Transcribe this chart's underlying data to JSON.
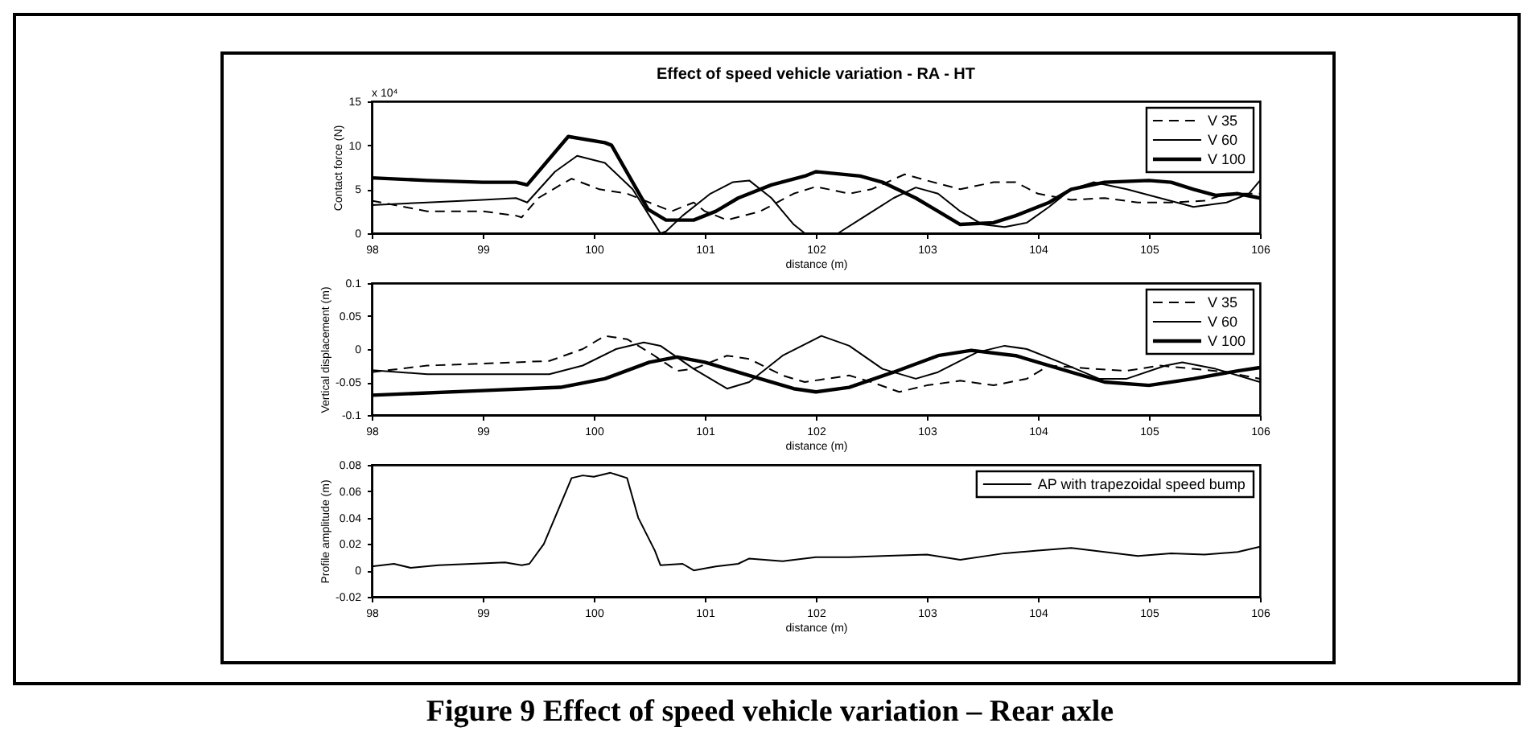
{
  "chart_data": [
    {
      "type": "line",
      "title": "Effect of speed vehicle variation - RA - HT",
      "xlabel": "distance (m)",
      "ylabel": "Contact force (N)",
      "annotations": [
        "x 10⁴"
      ],
      "xlim": [
        98,
        106
      ],
      "xticks": [
        98,
        99,
        100,
        101,
        102,
        103,
        104,
        105,
        106
      ],
      "ylim": [
        0,
        15
      ],
      "yticks": [
        0,
        5,
        10,
        15
      ],
      "legend": "top right",
      "series": [
        {
          "name": "V 35",
          "color": "#000000",
          "line_style": "dashed",
          "x": [
            98,
            98.5,
            99,
            99.3,
            99.35,
            99.5,
            99.7,
            99.8,
            100.05,
            100.3,
            100.5,
            100.7,
            100.9,
            101,
            101.2,
            101.5,
            101.8,
            102,
            102.3,
            102.5,
            102.8,
            103,
            103.3,
            103.6,
            103.8,
            104,
            104.3,
            104.6,
            104.9,
            105.2,
            105.5,
            105.7,
            106
          ],
          "values": [
            3.7,
            2.5,
            2.5,
            2,
            1.8,
            4,
            5.5,
            6.2,
            5,
            4.5,
            3.5,
            2.5,
            3.5,
            2.5,
            1.5,
            2.5,
            4.5,
            5.3,
            4.5,
            5,
            6.7,
            6,
            5,
            5.8,
            5.8,
            4.5,
            3.8,
            4,
            3.5,
            3.5,
            3.7,
            4.5,
            4.5
          ]
        },
        {
          "name": "V 60",
          "color": "#000000",
          "line_style": "solid",
          "x": [
            98,
            98.5,
            99,
            99.3,
            99.4,
            99.65,
            99.85,
            100.1,
            100.35,
            100.5,
            100.6,
            100.65,
            100.8,
            101.05,
            101.25,
            101.4,
            101.6,
            101.8,
            101.9,
            102.2,
            102.45,
            102.7,
            102.9,
            103.1,
            103.3,
            103.5,
            103.7,
            103.9,
            104.1,
            104.3,
            104.5,
            104.8,
            105.1,
            105.4,
            105.7,
            105.9,
            106
          ],
          "values": [
            3.2,
            3.5,
            3.8,
            4,
            3.5,
            7,
            8.8,
            8,
            5,
            2,
            0,
            0.2,
            2,
            4.5,
            5.8,
            6,
            4,
            1,
            0,
            0,
            2,
            4,
            5.2,
            4.5,
            2.5,
            1,
            0.7,
            1.2,
            3,
            5,
            5.8,
            5,
            4,
            3,
            3.5,
            4.5,
            6
          ]
        },
        {
          "name": "V 100",
          "color": "#000000",
          "line_style": "solid",
          "x": [
            98,
            98.5,
            99,
            99.3,
            99.4,
            99.77,
            100.1,
            100.16,
            100.49,
            100.65,
            100.9,
            101.1,
            101.3,
            101.6,
            101.9,
            102,
            102.4,
            102.6,
            102.9,
            103.1,
            103.3,
            103.6,
            103.8,
            104.1,
            104.3,
            104.6,
            105,
            105.2,
            105.4,
            105.6,
            105.8,
            106
          ],
          "values": [
            6.3,
            6,
            5.8,
            5.8,
            5.5,
            11,
            10.3,
            10,
            2.7,
            1.5,
            1.5,
            2.5,
            4,
            5.5,
            6.5,
            7,
            6.5,
            5.8,
            4,
            2.5,
            1,
            1.2,
            2,
            3.5,
            5,
            5.8,
            6,
            5.8,
            5,
            4.3,
            4.5,
            4
          ]
        }
      ]
    },
    {
      "type": "line",
      "xlabel": "distance (m)",
      "ylabel": "Vertical displacement (m)",
      "xlim": [
        98,
        106
      ],
      "xticks": [
        98,
        99,
        100,
        101,
        102,
        103,
        104,
        105,
        106
      ],
      "ylim": [
        -0.1,
        0.1
      ],
      "yticks": [
        -0.1,
        -0.05,
        0,
        0.05,
        0.1
      ],
      "legend": "top right",
      "series": [
        {
          "name": "V 35",
          "color": "#000000",
          "line_style": "dashed",
          "x": [
            98,
            98.5,
            99,
            99.6,
            99.9,
            100.1,
            100.3,
            100.5,
            100.75,
            100.9,
            101.2,
            101.4,
            101.7,
            101.9,
            102.1,
            102.3,
            102.5,
            102.75,
            103,
            103.3,
            103.6,
            103.9,
            104.1,
            104.5,
            104.8,
            105.1,
            105.4,
            105.7,
            106
          ],
          "values": [
            -0.035,
            -0.025,
            -0.022,
            -0.018,
            0,
            0.02,
            0.015,
            -0.005,
            -0.033,
            -0.03,
            -0.01,
            -0.015,
            -0.04,
            -0.05,
            -0.045,
            -0.04,
            -0.05,
            -0.065,
            -0.055,
            -0.048,
            -0.055,
            -0.045,
            -0.025,
            -0.03,
            -0.033,
            -0.025,
            -0.03,
            -0.035,
            -0.045
          ]
        },
        {
          "name": "V 60",
          "color": "#000000",
          "line_style": "solid",
          "x": [
            98,
            98.5,
            99,
            99.6,
            99.9,
            100.2,
            100.45,
            100.6,
            100.9,
            101.2,
            101.4,
            101.7,
            102.05,
            102.3,
            102.6,
            102.9,
            103.1,
            103.45,
            103.7,
            103.9,
            104.2,
            104.55,
            104.8,
            105.15,
            105.3,
            105.6,
            106
          ],
          "values": [
            -0.032,
            -0.038,
            -0.038,
            -0.038,
            -0.025,
            0,
            0.01,
            0.005,
            -0.03,
            -0.06,
            -0.05,
            -0.01,
            0.02,
            0.005,
            -0.03,
            -0.045,
            -0.035,
            -0.005,
            0.005,
            0,
            -0.02,
            -0.045,
            -0.045,
            -0.025,
            -0.02,
            -0.03,
            -0.05
          ]
        },
        {
          "name": "V 100",
          "color": "#000000",
          "line_style": "solid",
          "x": [
            98,
            99,
            99.7,
            100.1,
            100.5,
            100.75,
            101,
            101.4,
            101.8,
            102,
            102.3,
            102.7,
            103.1,
            103.4,
            103.8,
            104.2,
            104.6,
            105,
            105.4,
            105.8,
            106
          ],
          "values": [
            -0.07,
            -0.063,
            -0.058,
            -0.045,
            -0.02,
            -0.012,
            -0.02,
            -0.04,
            -0.06,
            -0.065,
            -0.058,
            -0.035,
            -0.01,
            -0.002,
            -0.01,
            -0.03,
            -0.05,
            -0.055,
            -0.045,
            -0.033,
            -0.028
          ]
        }
      ]
    },
    {
      "type": "line",
      "xlabel": "distance (m)",
      "ylabel": "Profile amplitude (m)",
      "annotations": [
        "Figure 9 Effect of speed vehicle variation – Rear axle"
      ],
      "xlim": [
        98,
        106
      ],
      "xticks": [
        98,
        99,
        100,
        101,
        102,
        103,
        104,
        105,
        106
      ],
      "ylim": [
        -0.02,
        0.08
      ],
      "yticks": [
        -0.02,
        0,
        0.02,
        0.04,
        0.06,
        0.08
      ],
      "legend": "top right",
      "series": [
        {
          "name": "AP with trapezoidal speed bump",
          "color": "#000000",
          "line_style": "solid",
          "x": [
            98,
            98.2,
            98.35,
            98.6,
            98.9,
            99.2,
            99.35,
            99.42,
            99.55,
            99.65,
            99.75,
            99.8,
            99.9,
            100,
            100.15,
            100.3,
            100.35,
            100.4,
            100.55,
            100.6,
            100.8,
            100.9,
            101.1,
            101.3,
            101.4,
            101.7,
            102,
            102.3,
            102.6,
            103,
            103.3,
            103.7,
            104,
            104.3,
            104.6,
            104.9,
            105.2,
            105.5,
            105.8,
            106
          ],
          "values": [
            0.003,
            0.005,
            0.002,
            0.004,
            0.005,
            0.006,
            0.004,
            0.005,
            0.02,
            0.04,
            0.06,
            0.07,
            0.072,
            0.071,
            0.074,
            0.07,
            0.055,
            0.04,
            0.015,
            0.004,
            0.005,
            0,
            0.003,
            0.005,
            0.009,
            0.007,
            0.01,
            0.01,
            0.011,
            0.012,
            0.008,
            0.013,
            0.015,
            0.017,
            0.014,
            0.011,
            0.013,
            0.012,
            0.014,
            0.018
          ]
        }
      ]
    }
  ]
}
